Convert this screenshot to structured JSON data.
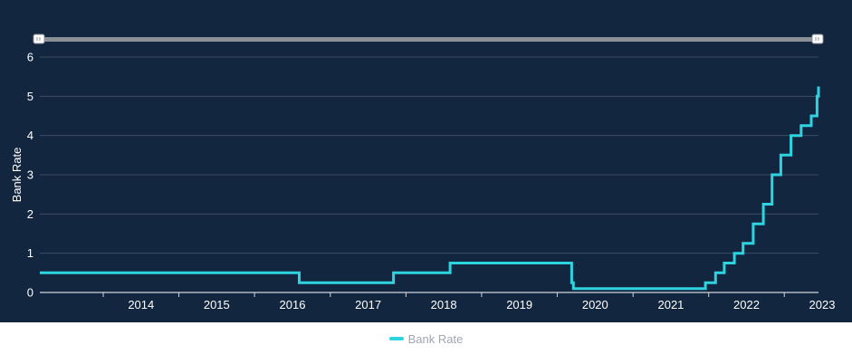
{
  "colors": {
    "background": "#13263f",
    "series": "#2ed3e0",
    "grid": "#3b4e66",
    "text": "#ffffff",
    "legend_text": "#a0a7b1",
    "navigator_track": "#8b8f96",
    "navigator_handle": "#ffffff"
  },
  "navigator": {
    "left_handle_icon": "grip-handle-icon",
    "right_handle_icon": "grip-handle-icon"
  },
  "chart_data": {
    "type": "line",
    "step": true,
    "title": "",
    "xlabel": "",
    "ylabel": "Bank Rate",
    "xlim": [
      "2013-03-01",
      "2023-06-15"
    ],
    "ylim": [
      0,
      6
    ],
    "y_ticks": [
      "0",
      "1",
      "2",
      "3",
      "4",
      "5",
      "6"
    ],
    "x_ticks": [
      "2014",
      "2015",
      "2016",
      "2017",
      "2018",
      "2019",
      "2020",
      "2021",
      "2022",
      "2023"
    ],
    "grid": true,
    "legend": "bottom-center",
    "series": [
      {
        "name": "Bank Rate",
        "points": [
          {
            "date": "2013-03-01",
            "value": 0.5
          },
          {
            "date": "2016-08-04",
            "value": 0.25
          },
          {
            "date": "2017-11-02",
            "value": 0.5
          },
          {
            "date": "2018-08-02",
            "value": 0.75
          },
          {
            "date": "2020-03-11",
            "value": 0.25
          },
          {
            "date": "2020-03-19",
            "value": 0.1
          },
          {
            "date": "2021-12-16",
            "value": 0.25
          },
          {
            "date": "2022-02-03",
            "value": 0.5
          },
          {
            "date": "2022-03-17",
            "value": 0.75
          },
          {
            "date": "2022-05-05",
            "value": 1.0
          },
          {
            "date": "2022-06-16",
            "value": 1.25
          },
          {
            "date": "2022-08-04",
            "value": 1.75
          },
          {
            "date": "2022-09-22",
            "value": 2.25
          },
          {
            "date": "2022-11-03",
            "value": 3.0
          },
          {
            "date": "2022-12-15",
            "value": 3.5
          },
          {
            "date": "2023-02-02",
            "value": 4.0
          },
          {
            "date": "2023-03-23",
            "value": 4.25
          },
          {
            "date": "2023-05-11",
            "value": 4.5
          },
          {
            "date": "2023-06-08",
            "value": 5.0
          },
          {
            "date": "2023-06-15",
            "value": 5.25
          }
        ]
      }
    ]
  }
}
